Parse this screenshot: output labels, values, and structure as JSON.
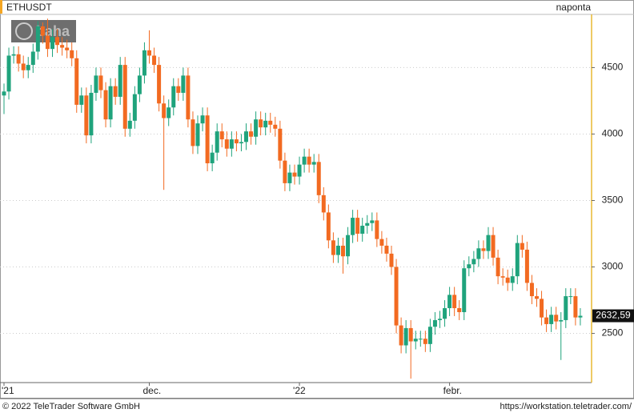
{
  "chart_data": {
    "type": "candlestick",
    "title": "ETHUSDT",
    "subtitle": "naponta",
    "categories": [
      "'21",
      null,
      null,
      null,
      null,
      null,
      null,
      null,
      null,
      null,
      null,
      null,
      null,
      null,
      null,
      null,
      null,
      null,
      null,
      null,
      null,
      null,
      null,
      null,
      null,
      null,
      null,
      null,
      null,
      null,
      "dec.",
      null,
      null,
      null,
      null,
      null,
      null,
      null,
      null,
      null,
      null,
      null,
      null,
      null,
      null,
      null,
      null,
      null,
      null,
      null,
      null,
      null,
      null,
      null,
      null,
      null,
      null,
      null,
      null,
      null,
      null,
      "'22",
      null,
      null,
      null,
      null,
      null,
      null,
      null,
      null,
      null,
      null,
      null,
      null,
      null,
      null,
      null,
      null,
      null,
      null,
      null,
      null,
      null,
      null,
      null,
      null,
      null,
      null,
      null,
      null,
      null,
      null,
      "febr.",
      null,
      null,
      null,
      null,
      null,
      null,
      null,
      null,
      null,
      null,
      null,
      null,
      null,
      null,
      null,
      null,
      null,
      null,
      null,
      null,
      null,
      null,
      null,
      null,
      null,
      null,
      null
    ],
    "open": [
      4290,
      4320,
      4590,
      4600,
      4530,
      4480,
      4520,
      4620,
      4810,
      4740,
      4640,
      4730,
      4670,
      4650,
      4630,
      4570,
      4220,
      4290,
      3990,
      4310,
      4440,
      4330,
      4110,
      4360,
      4280,
      4520,
      4040,
      4100,
      4300,
      4440,
      4630,
      4590,
      4520,
      4230,
      4120,
      4200,
      4360,
      4310,
      4440,
      4110,
      3910,
      4080,
      4140,
      3780,
      3860,
      4020,
      3960,
      3890,
      3960,
      3930,
      3940,
      4020,
      3980,
      4110,
      4050,
      4100,
      4070,
      4040,
      3800,
      3630,
      3710,
      3680,
      3770,
      3830,
      3770,
      3790,
      3540,
      3410,
      3200,
      3090,
      3160,
      3080,
      3240,
      3370,
      3250,
      3310,
      3330,
      3350,
      3210,
      3160,
      3100,
      3000,
      2560,
      2410,
      2540,
      2440,
      2460,
      2460,
      2420,
      2550,
      2600,
      2610,
      2690,
      2790,
      2690,
      2660,
      2990,
      3020,
      3060,
      3140,
      3120,
      3240,
      3070,
      2930,
      2920,
      2880,
      2930,
      3180,
      3130,
      2880,
      2780,
      2760,
      2620,
      2570,
      2640,
      2590,
      2600,
      2780,
      2780,
      2620
    ],
    "high": [
      4380,
      4650,
      4660,
      4660,
      4590,
      4580,
      4680,
      4850,
      4840,
      4868,
      4790,
      4790,
      4730,
      4710,
      4690,
      4630,
      4350,
      4350,
      4370,
      4500,
      4500,
      4390,
      4420,
      4420,
      4580,
      4580,
      4160,
      4360,
      4500,
      4690,
      4780,
      4650,
      4580,
      4290,
      4260,
      4420,
      4420,
      4500,
      4500,
      4170,
      4140,
      4200,
      4200,
      3920,
      4080,
      4080,
      4020,
      4020,
      4020,
      4000,
      4080,
      4080,
      4170,
      4170,
      4160,
      4160,
      4130,
      4100,
      3860,
      3770,
      3770,
      3830,
      3890,
      3890,
      3850,
      3850,
      3600,
      3470,
      3260,
      3220,
      3220,
      3300,
      3430,
      3430,
      3370,
      3390,
      3410,
      3410,
      3270,
      3220,
      3160,
      3060,
      2620,
      2600,
      2600,
      2520,
      2520,
      2520,
      2610,
      2660,
      2670,
      2750,
      2850,
      2850,
      2750,
      3050,
      3080,
      3120,
      3200,
      3200,
      3300,
      3300,
      3130,
      2990,
      2980,
      2990,
      3240,
      3240,
      3190,
      2940,
      2840,
      2820,
      2680,
      2700,
      2700,
      2660,
      2840,
      2840,
      2840,
      2690
    ],
    "low": [
      4150,
      4260,
      4530,
      4470,
      4420,
      4420,
      4460,
      4560,
      4680,
      4580,
      4580,
      4610,
      4590,
      4570,
      4510,
      4160,
      4160,
      3930,
      3930,
      4250,
      4270,
      4050,
      4050,
      4220,
      4220,
      3980,
      3980,
      4040,
      4240,
      4380,
      4530,
      4460,
      4170,
      3580,
      4060,
      4140,
      4250,
      4250,
      4050,
      3850,
      3850,
      4020,
      3720,
      3720,
      3800,
      3900,
      3830,
      3830,
      3870,
      3870,
      3880,
      3920,
      3920,
      3990,
      3990,
      4010,
      3980,
      3740,
      3570,
      3570,
      3620,
      3620,
      3710,
      3710,
      3710,
      3480,
      3350,
      3140,
      3030,
      3030,
      2950,
      3020,
      3180,
      3190,
      3190,
      3250,
      3270,
      3150,
      3100,
      3040,
      2940,
      2500,
      2350,
      2350,
      2160,
      2380,
      2400,
      2360,
      2360,
      2490,
      2540,
      2550,
      2630,
      2630,
      2600,
      2600,
      2930,
      2960,
      3000,
      3060,
      3060,
      3010,
      2870,
      2860,
      2820,
      2820,
      2870,
      3070,
      2820,
      2720,
      2700,
      2560,
      2510,
      2510,
      2530,
      2300,
      2540,
      2720,
      2560,
      2560
    ],
    "close": [
      4320,
      4590,
      4600,
      4530,
      4480,
      4520,
      4620,
      4810,
      4740,
      4640,
      4730,
      4670,
      4650,
      4630,
      4570,
      4220,
      4290,
      3990,
      4310,
      4440,
      4330,
      4110,
      4360,
      4280,
      4520,
      4040,
      4100,
      4300,
      4440,
      4630,
      4590,
      4520,
      4230,
      4120,
      4200,
      4360,
      4310,
      4440,
      4110,
      3910,
      4080,
      4140,
      3780,
      3860,
      4020,
      3960,
      3890,
      3960,
      3930,
      3940,
      4020,
      3980,
      4110,
      4050,
      4100,
      4070,
      4040,
      3800,
      3630,
      3710,
      3680,
      3770,
      3830,
      3770,
      3790,
      3540,
      3410,
      3200,
      3090,
      3160,
      3080,
      3240,
      3370,
      3250,
      3310,
      3330,
      3350,
      3210,
      3160,
      3100,
      3000,
      2560,
      2410,
      2540,
      2440,
      2460,
      2460,
      2420,
      2550,
      2600,
      2610,
      2690,
      2790,
      2690,
      2660,
      2990,
      3020,
      3060,
      3140,
      3120,
      3240,
      3070,
      2930,
      2920,
      2880,
      2930,
      3180,
      3130,
      2880,
      2780,
      2760,
      2620,
      2570,
      2640,
      2590,
      2600,
      2780,
      2780,
      2620,
      2632.59
    ],
    "up_color": "#1fa37c",
    "down_color": "#f26a21",
    "ylim": [
      2130,
      4900
    ],
    "yticks": [
      2500,
      3000,
      3500,
      4000,
      4500
    ],
    "grid": true,
    "last_price": {
      "value": 2632.59,
      "label": "2632,59"
    }
  },
  "logo": "baha",
  "footer": {
    "copyright": "© 2022 TeleTrader Software GmbH",
    "url": "https://workstation.teletrader.com/"
  }
}
